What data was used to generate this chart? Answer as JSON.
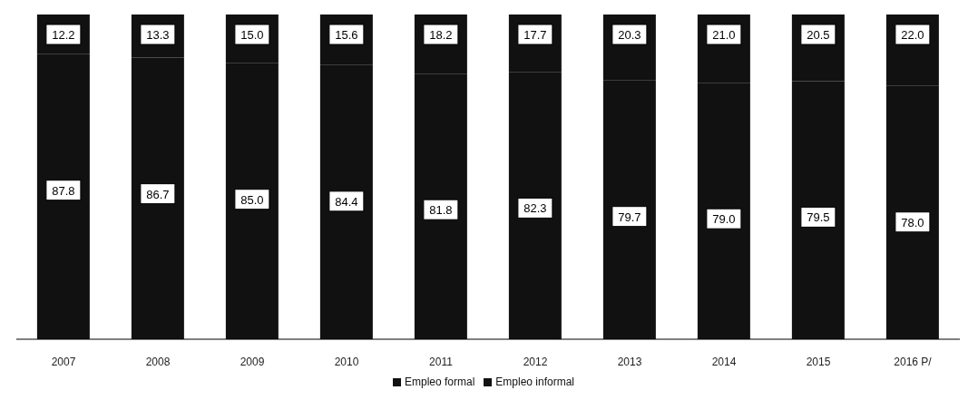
{
  "chart_data": {
    "type": "bar",
    "stacked": true,
    "categories": [
      "2007",
      "2008",
      "2009",
      "2010",
      "2011",
      "2012",
      "2013",
      "2014",
      "2015",
      "2016 P/"
    ],
    "series": [
      {
        "name": "Empleo informal",
        "color": "#111111",
        "values": [
          87.8,
          86.7,
          85.0,
          84.4,
          81.8,
          82.3,
          79.7,
          79.0,
          79.5,
          78.0
        ],
        "value_labels": [
          "87.8",
          "86.7",
          "85.0",
          "84.4",
          "81.8",
          "82.3",
          "79.7",
          "79.0",
          "79.5",
          "78.0"
        ]
      },
      {
        "name": "Empleo formal",
        "color": "#111111",
        "values": [
          12.2,
          13.3,
          15.0,
          15.6,
          18.2,
          17.7,
          20.3,
          21.0,
          20.5,
          22.0
        ],
        "value_labels": [
          "12.2",
          "13.3",
          "15.0",
          "15.6",
          "18.2",
          "17.7",
          "20.3",
          "21.0",
          "20.5",
          "22.0"
        ]
      }
    ],
    "legend": "bottom",
    "grid": false
  }
}
